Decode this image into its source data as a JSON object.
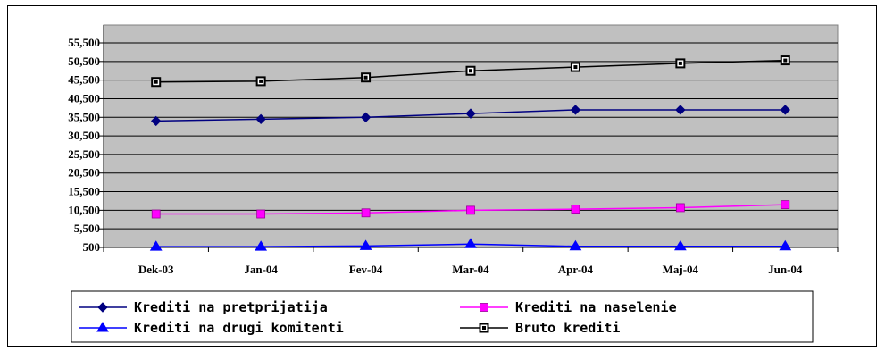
{
  "chart_data": {
    "type": "line",
    "categories": [
      "Dek-03",
      "Jan-04",
      "Fev-04",
      "Mar-04",
      "Apr-04",
      "Maj-04",
      "Jun-04"
    ],
    "y_ticks": [
      "55,500",
      "50,500",
      "45,500",
      "40,500",
      "35,500",
      "30,500",
      "25,500",
      "20,500",
      "15,500",
      "10,500",
      "5,500",
      "500"
    ],
    "ylim": [
      500,
      55500
    ],
    "grid": true,
    "legend_position": "bottom",
    "series": [
      {
        "name": "Krediti na pretprijatija",
        "values": [
          34500,
          35000,
          35500,
          36500,
          37500,
          37500,
          37500
        ],
        "color": "#000080",
        "marker": "diamond"
      },
      {
        "name": "Krediti na naselenie",
        "values": [
          9500,
          9500,
          9800,
          10500,
          10800,
          11200,
          12000
        ],
        "color": "#ff00ff",
        "marker": "square"
      },
      {
        "name": "Krediti na drugi komitenti",
        "values": [
          700,
          700,
          900,
          1400,
          800,
          800,
          800
        ],
        "color": "#0000ff",
        "marker": "triangle"
      },
      {
        "name": "Bruto krediti",
        "values": [
          45000,
          45200,
          46200,
          48000,
          49000,
          50000,
          50800
        ],
        "color": "#000000",
        "marker": "square-outline"
      }
    ],
    "colors": {
      "plot_background": "#c0c0c0",
      "grid": "#000000"
    }
  }
}
